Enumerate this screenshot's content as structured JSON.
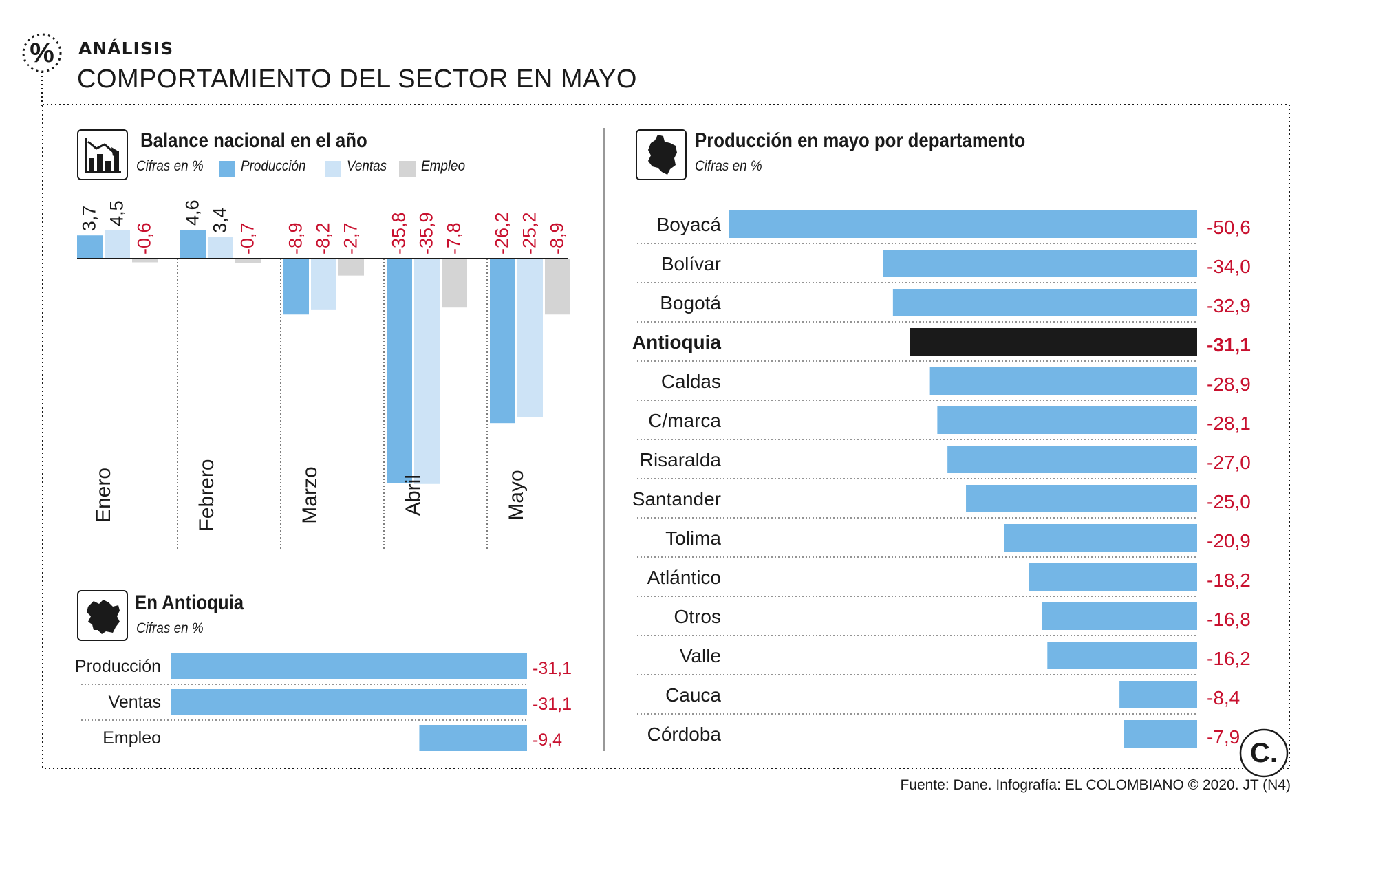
{
  "header": {
    "kicker": "ANÁLISIS",
    "title": "COMPORTAMIENTO DEL SECTOR EN MAYO",
    "icon_glyph": "%"
  },
  "colors": {
    "produccion": "#74b6e6",
    "ventas": "#cde3f6",
    "empleo": "#d4d4d4",
    "negative_text": "#c8102e",
    "highlight_bar": "#1a1a1a",
    "text": "#1a1a1a"
  },
  "panels": {
    "balance": {
      "title": "Balance nacional en el año",
      "subtitle": "Cifras en %",
      "legend": [
        "Producción",
        "Ventas",
        "Empleo"
      ]
    },
    "antioquia": {
      "title": "En Antioquia",
      "subtitle": "Cifras en %"
    },
    "departamentos": {
      "title": "Producción en mayo por departamento",
      "subtitle": "Cifras en %"
    }
  },
  "chart_data": [
    {
      "type": "bar",
      "title": "Balance nacional en el año",
      "subtitle": "Cifras en %",
      "categories": [
        "Enero",
        "Febrero",
        "Marzo",
        "Abril",
        "Mayo"
      ],
      "series": [
        {
          "name": "Producción",
          "values": [
            3.7,
            4.6,
            -8.9,
            -35.8,
            -26.2
          ],
          "labels": [
            "3,7",
            "4,6",
            "-8,9",
            "-35,8",
            "-26,2"
          ]
        },
        {
          "name": "Ventas",
          "values": [
            4.5,
            3.4,
            -8.2,
            -35.9,
            -25.2
          ],
          "labels": [
            "4,5",
            "3,4",
            "-8,2",
            "-35,9",
            "-25,2"
          ]
        },
        {
          "name": "Empleo",
          "values": [
            -0.6,
            -0.7,
            -2.7,
            -7.8,
            -8.9
          ],
          "labels": [
            "-0,6",
            "-0,7",
            "-2,7",
            "-7,8",
            "-8,9"
          ]
        }
      ],
      "ylim": [
        -36,
        5
      ]
    },
    {
      "type": "bar",
      "orientation": "horizontal",
      "title": "En Antioquia",
      "subtitle": "Cifras en %",
      "categories": [
        "Producción",
        "Ventas",
        "Empleo"
      ],
      "values": [
        -31.1,
        -31.1,
        -9.4
      ],
      "labels": [
        "-31,1",
        "-31,1",
        "-9,4"
      ],
      "xlim": [
        -31.1,
        0
      ]
    },
    {
      "type": "bar",
      "orientation": "horizontal",
      "title": "Producción en mayo por departamento",
      "subtitle": "Cifras en %",
      "categories": [
        "Boyacá",
        "Bolívar",
        "Bogotá",
        "Antioquia",
        "Caldas",
        "C/marca",
        "Risaralda",
        "Santander",
        "Tolima",
        "Atlántico",
        "Otros",
        "Valle",
        "Cauca",
        "Córdoba"
      ],
      "values": [
        -50.6,
        -34.0,
        -32.9,
        -31.1,
        -28.9,
        -28.1,
        -27.0,
        -25.0,
        -20.9,
        -18.2,
        -16.8,
        -16.2,
        -8.4,
        -7.9
      ],
      "labels": [
        "-50,6",
        "-34,0",
        "-32,9",
        "-31,1",
        "-28,9",
        "-28,1",
        "-27,0",
        "-25,0",
        "-20,9",
        "-18,2",
        "-16,8",
        "-16,2",
        "-8,4",
        "-7,9"
      ],
      "highlight": "Antioquia",
      "xlim": [
        -50.6,
        0
      ]
    }
  ],
  "footer": {
    "source": "Fuente: Dane. Infografía: EL COLOMBIANO © 2020. JT (N4)",
    "logo_letter": "C."
  }
}
